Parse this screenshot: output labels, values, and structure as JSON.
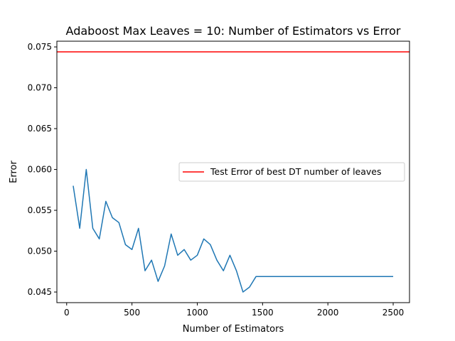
{
  "chart_data": {
    "type": "line",
    "title": "Adaboost Max Leaves = 10: Number of Estimators vs Error",
    "xlabel": "Number of Estimators",
    "ylabel": "Error",
    "xlim": [
      -75,
      2625
    ],
    "ylim": [
      0.0437,
      0.0757
    ],
    "xticks": [
      0,
      500,
      1000,
      1500,
      2000,
      2500
    ],
    "yticks": [
      0.045,
      0.05,
      0.055,
      0.06,
      0.065,
      0.07,
      0.075
    ],
    "xtick_labels": [
      "0",
      "500",
      "1000",
      "1500",
      "2000",
      "2500"
    ],
    "ytick_labels": [
      "0.045",
      "0.050",
      "0.055",
      "0.060",
      "0.065",
      "0.070",
      "0.075"
    ],
    "grid": false,
    "legend_position": "center-right",
    "series": [
      {
        "kind": "line",
        "color": "#1f77b4",
        "x": [
          50,
          100,
          150,
          200,
          250,
          300,
          350,
          400,
          450,
          500,
          550,
          600,
          650,
          700,
          750,
          800,
          850,
          900,
          950,
          1000,
          1050,
          1100,
          1150,
          1200,
          1250,
          1300,
          1350,
          1400,
          1450,
          1500,
          1550,
          1600,
          1650,
          1700,
          1750,
          1800,
          1850,
          1900,
          1950,
          2000,
          2050,
          2100,
          2150,
          2200,
          2250,
          2300,
          2350,
          2400,
          2450,
          2500
        ],
        "y": [
          0.058,
          0.0528,
          0.06,
          0.0528,
          0.0515,
          0.0561,
          0.0541,
          0.0535,
          0.0508,
          0.0502,
          0.0528,
          0.0476,
          0.0489,
          0.0463,
          0.0482,
          0.0521,
          0.0495,
          0.0502,
          0.0489,
          0.0495,
          0.0515,
          0.0508,
          0.0489,
          0.0476,
          0.0495,
          0.0476,
          0.045,
          0.0456,
          0.0469,
          0.0469,
          0.0469,
          0.0469,
          0.0469,
          0.0469,
          0.0469,
          0.0469,
          0.0469,
          0.0469,
          0.0469,
          0.0469,
          0.0469,
          0.0469,
          0.0469,
          0.0469,
          0.0469,
          0.0469,
          0.0469,
          0.0469,
          0.0469,
          0.0469
        ]
      },
      {
        "kind": "hline",
        "name": "Test Error of best DT number of leaves",
        "color": "#ff0000",
        "y": 0.0744
      }
    ]
  }
}
